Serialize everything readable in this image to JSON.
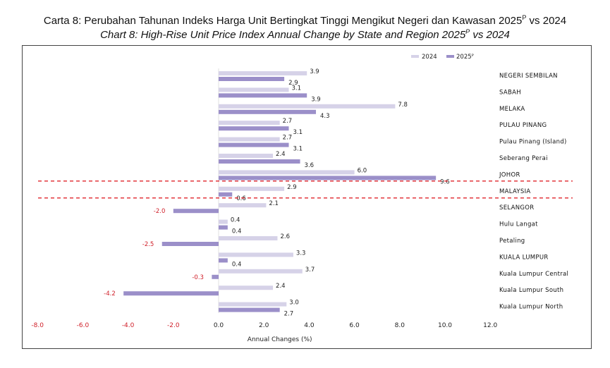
{
  "title_ms": "Carta 8: Perubahan Tahunan Indeks Harga Unit Bertingkat Tinggi Mengikut Negeri dan Kawasan 2025",
  "title_ms_sup": "P",
  "title_ms_tail": " vs 2024",
  "title_en": "Chart 8: High-Rise Unit Price Index Annual Change by State and Region 2025",
  "title_en_sup": "P",
  "title_en_tail": " vs 2024",
  "colors": {
    "series_2024": "#d6d2e8",
    "series_2025": "#9b8fc9",
    "negative_label": "#d0202a",
    "highlight_line": "#e0242b"
  },
  "chart_data": {
    "type": "bar",
    "orientation": "horizontal",
    "categories": [
      "NEGERI SEMBILAN",
      "SABAH",
      "MELAKA",
      "PULAU PINANG",
      "Pulau Pinang (Island)",
      "Seberang Perai",
      "JOHOR",
      "MALAYSIA",
      "SELANGOR",
      "Hulu Langat",
      "Petaling",
      "KUALA LUMPUR",
      "Kuala Lumpur Central",
      "Kuala Lumpur South",
      "Kuala Lumpur North"
    ],
    "value_labels_2024": [
      "3.9",
      "3.1",
      "7.8",
      "2.7",
      "2.7",
      "2.4",
      "6.0",
      "2.9",
      "2.1",
      "0.4",
      "2.6",
      "3.3",
      "3.7",
      "2.4",
      "3.0"
    ],
    "value_labels_2025": [
      "2.9",
      "3.9",
      "4.3",
      "3.1",
      "3.1",
      "3.6",
      "9.6",
      "0.6",
      "-2.0",
      "0.4",
      "-2.5",
      "0.4",
      "-0.3",
      "-4.2",
      "2.7"
    ],
    "series": [
      {
        "name": "2024",
        "values": [
          3.9,
          3.1,
          7.8,
          2.7,
          2.7,
          2.4,
          6.0,
          2.9,
          2.1,
          0.4,
          2.6,
          3.3,
          3.7,
          2.4,
          3.0
        ]
      },
      {
        "name": "2025P",
        "values": [
          2.9,
          3.9,
          4.3,
          3.1,
          3.1,
          3.6,
          9.6,
          0.6,
          -2.0,
          0.4,
          -2.5,
          0.4,
          -0.3,
          -4.2,
          2.7
        ]
      }
    ],
    "legend": [
      "2024",
      "2025ᴾ"
    ],
    "xlabel": "Annual Changes (%)",
    "xlim": [
      -8.0,
      12.0
    ],
    "xticks": [
      -8.0,
      -6.0,
      -4.0,
      -2.0,
      0.0,
      2.0,
      4.0,
      6.0,
      8.0,
      10.0,
      12.0
    ],
    "xtick_labels": [
      "-8.0",
      "-6.0",
      "-4.0",
      "-2.0",
      "0.0",
      "2.0",
      "4.0",
      "6.0",
      "8.0",
      "10.0",
      "12.0"
    ],
    "highlighted_category": "MALAYSIA",
    "grid": false,
    "legend_position": "top-right"
  }
}
